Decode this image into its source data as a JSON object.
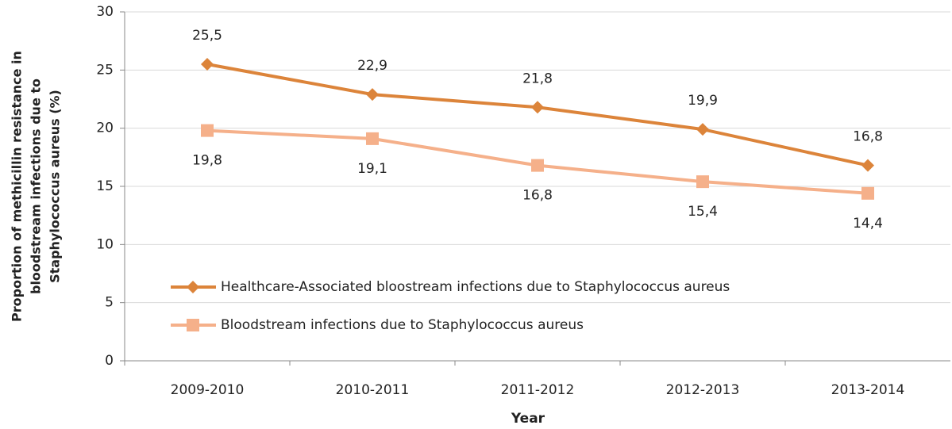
{
  "chart_data": {
    "type": "line",
    "xlabel": "Year",
    "ylabel": [
      "Proportion of methicillin resistance in",
      "bloodstream infections due to",
      "Staphylococcus aureus (%)"
    ],
    "categories": [
      "2009-2010",
      "2010-2011",
      "2011-2012",
      "2012-2013",
      "2013-2014"
    ],
    "series": [
      {
        "name": "Healthcare-Associated bloostream infections due to Staphylococcus aureus",
        "color": "#dc843a",
        "marker": "diamond",
        "values": [
          25.5,
          22.9,
          21.8,
          19.9,
          16.8
        ],
        "value_labels": [
          "25,5",
          "22,9",
          "21,8",
          "19,9",
          "16,8"
        ]
      },
      {
        "name": "Bloodstream infections due to Staphylococcus aureus",
        "color": "#f5b08a",
        "marker": "square",
        "values": [
          19.8,
          19.1,
          16.8,
          15.4,
          14.4
        ],
        "value_labels": [
          "19,8",
          "19,1",
          "16,8",
          "15,4",
          "14,4"
        ]
      }
    ],
    "ylim": [
      0,
      30
    ],
    "yticks": [
      0,
      5,
      10,
      15,
      20,
      25,
      30
    ],
    "grid": true,
    "legend": "lower left"
  }
}
